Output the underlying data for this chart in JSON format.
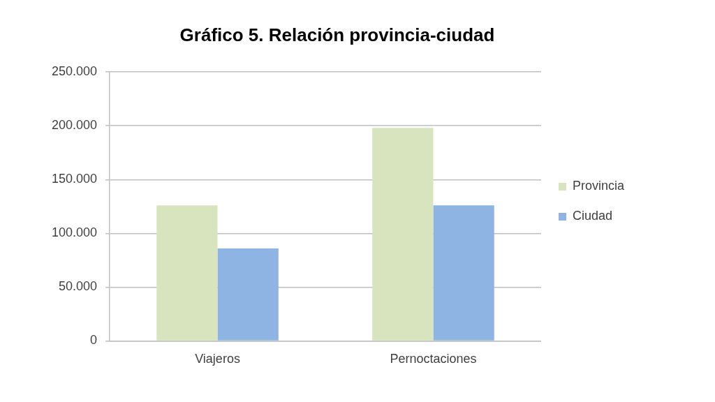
{
  "chart_data": {
    "type": "bar",
    "title": "Gráfico 5. Relación provincia-ciudad",
    "categories": [
      "Viajeros",
      "Pernoctaciones"
    ],
    "series": [
      {
        "name": "Provincia",
        "color": "#d7e4bd",
        "values": [
          126000,
          198000
        ]
      },
      {
        "name": "Ciudad",
        "color": "#8eb4e3",
        "values": [
          86000,
          126000
        ]
      }
    ],
    "ylim": [
      0,
      250000
    ],
    "yticks": [
      0,
      {
        "value": 50000,
        "label": "50.000"
      },
      {
        "value": 100000,
        "label": "100.000"
      },
      {
        "value": 150000,
        "label": "150.000"
      },
      {
        "value": 200000,
        "label": "200.000"
      },
      {
        "value": 250000,
        "label": "250.000"
      }
    ],
    "grid": "y",
    "legend": "right"
  }
}
